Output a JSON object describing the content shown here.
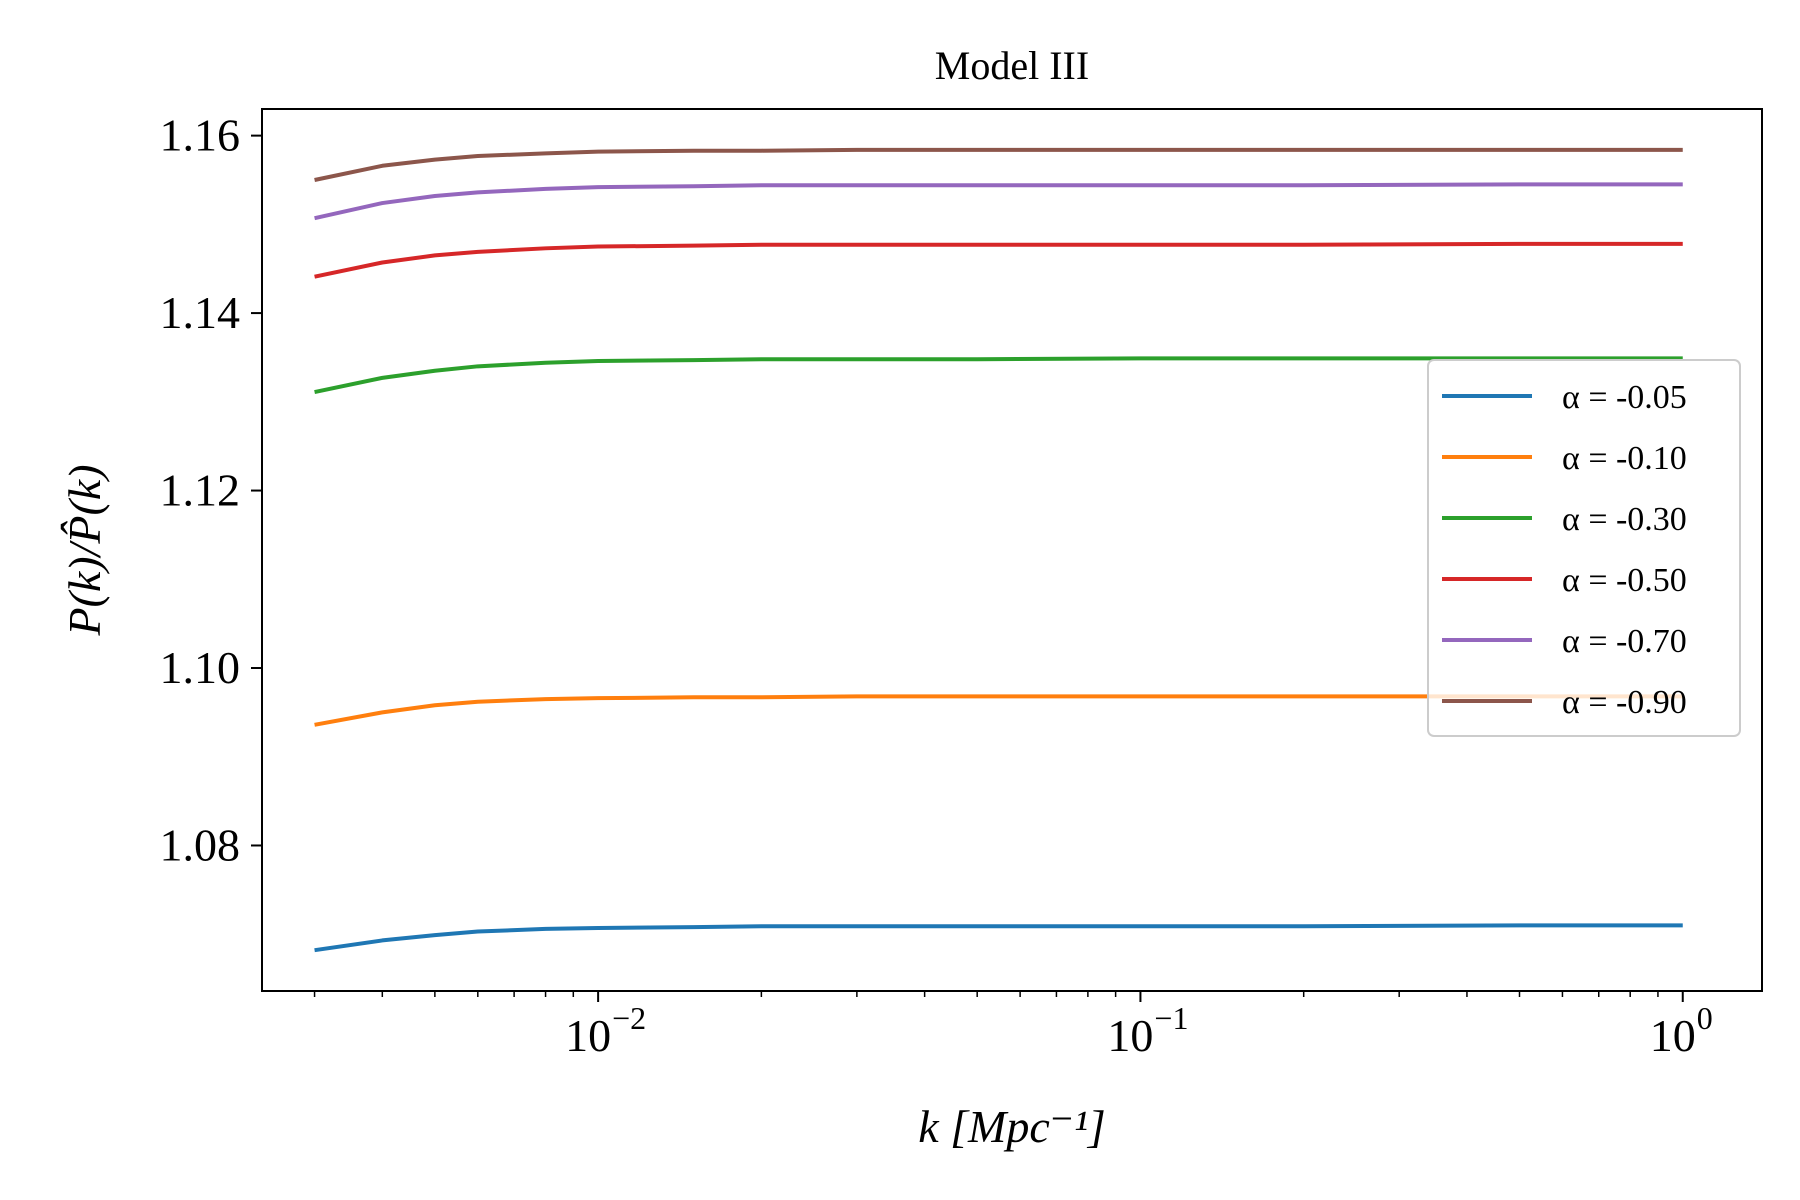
{
  "chart_data": {
    "type": "line",
    "title": "Model III",
    "xlabel": "k [Mpc⁻¹]",
    "ylabel": "P(k)/P̂(k)",
    "xscale": "log",
    "xlim": [
      0.0024,
      1.4
    ],
    "ylim": [
      1.0636,
      1.163
    ],
    "grid": false,
    "legend_position": "center-right",
    "x_ticks": [
      {
        "value": 0.01,
        "base": "10",
        "exp": "−2"
      },
      {
        "value": 0.1,
        "base": "10",
        "exp": "−1"
      },
      {
        "value": 1,
        "base": "10",
        "exp": "0"
      }
    ],
    "y_ticks": [
      {
        "value": 1.08,
        "label": "1.08"
      },
      {
        "value": 1.1,
        "label": "1.10"
      },
      {
        "value": 1.12,
        "label": "1.12"
      },
      {
        "value": 1.14,
        "label": "1.14"
      },
      {
        "value": 1.16,
        "label": "1.16"
      }
    ],
    "x": [
      0.003,
      0.004,
      0.005,
      0.006,
      0.008,
      0.01,
      0.015,
      0.02,
      0.03,
      0.05,
      0.1,
      0.2,
      0.5,
      1.0
    ],
    "series": [
      {
        "name": "α = -0.05",
        "color": "#1f77b4",
        "values": [
          1.0682,
          1.0693,
          1.0699,
          1.0703,
          1.0706,
          1.0707,
          1.0708,
          1.0709,
          1.0709,
          1.0709,
          1.0709,
          1.0709,
          1.071,
          1.071
        ]
      },
      {
        "name": "α = -0.10",
        "color": "#ff7f0e",
        "values": [
          1.0936,
          1.095,
          1.0958,
          1.0962,
          1.0965,
          1.0966,
          1.0967,
          1.0967,
          1.0968,
          1.0968,
          1.0968,
          1.0968,
          1.0968,
          1.0968
        ]
      },
      {
        "name": "α = -0.30",
        "color": "#2ca02c",
        "values": [
          1.1311,
          1.1327,
          1.1335,
          1.134,
          1.1344,
          1.1346,
          1.1347,
          1.1348,
          1.1348,
          1.1348,
          1.1349,
          1.1349,
          1.1349,
          1.1349
        ]
      },
      {
        "name": "α = -0.50",
        "color": "#d62728",
        "values": [
          1.1441,
          1.1457,
          1.1465,
          1.1469,
          1.1473,
          1.1475,
          1.1476,
          1.1477,
          1.1477,
          1.1477,
          1.1477,
          1.1477,
          1.1478,
          1.1478
        ]
      },
      {
        "name": "α = -0.70",
        "color": "#9467bd",
        "values": [
          1.1507,
          1.1524,
          1.1532,
          1.1536,
          1.154,
          1.1542,
          1.1543,
          1.1544,
          1.1544,
          1.1544,
          1.1544,
          1.1544,
          1.1545,
          1.1545
        ]
      },
      {
        "name": "α = -0.90",
        "color": "#8c564b",
        "values": [
          1.155,
          1.1566,
          1.1573,
          1.1577,
          1.158,
          1.1582,
          1.1583,
          1.1583,
          1.1584,
          1.1584,
          1.1584,
          1.1584,
          1.1584,
          1.1584
        ]
      }
    ]
  }
}
